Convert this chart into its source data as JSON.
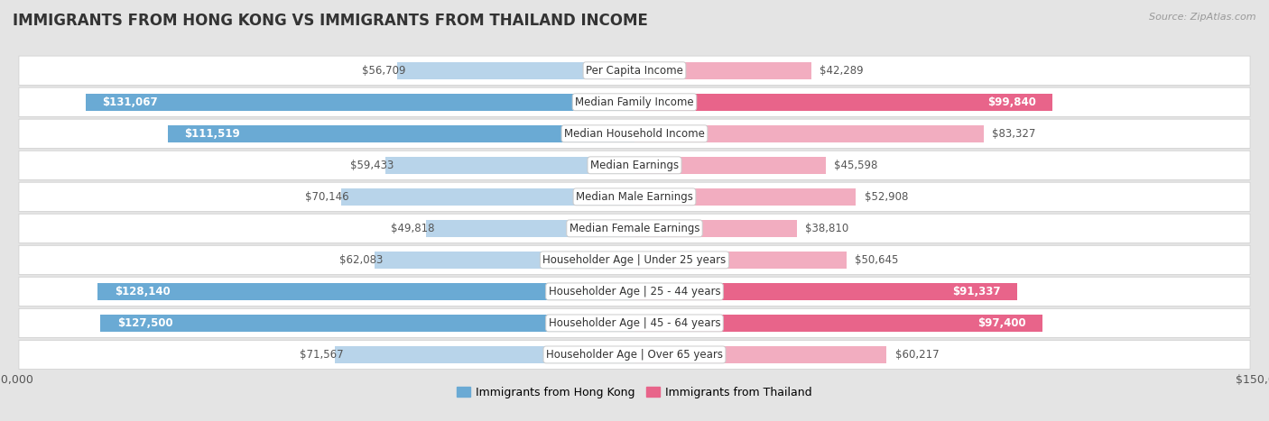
{
  "title": "IMMIGRANTS FROM HONG KONG VS IMMIGRANTS FROM THAILAND INCOME",
  "source": "Source: ZipAtlas.com",
  "categories": [
    "Per Capita Income",
    "Median Family Income",
    "Median Household Income",
    "Median Earnings",
    "Median Male Earnings",
    "Median Female Earnings",
    "Householder Age | Under 25 years",
    "Householder Age | 25 - 44 years",
    "Householder Age | 45 - 64 years",
    "Householder Age | Over 65 years"
  ],
  "hong_kong_values": [
    56709,
    131067,
    111519,
    59433,
    70146,
    49818,
    62083,
    128140,
    127500,
    71567
  ],
  "thailand_values": [
    42289,
    99840,
    83327,
    45598,
    52908,
    38810,
    50645,
    91337,
    97400,
    60217
  ],
  "hk_color_strong": "#6aaad4",
  "hk_color_light": "#b8d4ea",
  "th_color_strong": "#e8648a",
  "th_color_light": "#f2adc0",
  "axis_max": 150000,
  "background_color": "#e4e4e4",
  "row_bg_color": "#ffffff",
  "label_font_size": 8.5,
  "title_font_size": 12,
  "source_font_size": 8,
  "legend_font_size": 9,
  "hk_threshold": 100000,
  "th_threshold": 85000,
  "legend_label_hk": "Immigrants from Hong Kong",
  "legend_label_th": "Immigrants from Thailand"
}
